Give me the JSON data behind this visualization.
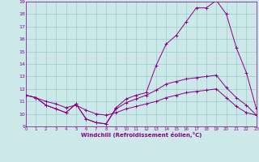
{
  "xlabel": "Windchill (Refroidissement éolien,°C)",
  "bg_color": "#cce8e8",
  "line_color": "#880088",
  "grid_color": "#99cccc",
  "xmin": 0,
  "xmax": 23,
  "ymin": 9,
  "ymax": 19,
  "series": [
    {
      "x": [
        0,
        1,
        2,
        3,
        4,
        5,
        6,
        7,
        8,
        9,
        10,
        11,
        12,
        13,
        14,
        15,
        16,
        17,
        18,
        19,
        20,
        21,
        22,
        23
      ],
      "y": [
        11.5,
        11.3,
        10.7,
        10.4,
        10.1,
        10.8,
        9.6,
        9.3,
        9.2,
        10.5,
        11.2,
        11.5,
        11.7,
        13.9,
        15.6,
        16.3,
        17.4,
        18.5,
        18.5,
        19.1,
        18.0,
        15.3,
        13.3,
        10.4
      ]
    },
    {
      "x": [
        0,
        1,
        2,
        3,
        4,
        5,
        6,
        7,
        8,
        9,
        10,
        11,
        12,
        13,
        14,
        15,
        16,
        17,
        18,
        19,
        20,
        21,
        22,
        23
      ],
      "y": [
        11.5,
        11.3,
        10.7,
        10.4,
        10.1,
        10.8,
        9.6,
        9.3,
        9.2,
        10.4,
        10.9,
        11.2,
        11.5,
        11.9,
        12.4,
        12.6,
        12.8,
        12.9,
        13.0,
        13.1,
        12.1,
        11.3,
        10.7,
        9.9
      ]
    },
    {
      "x": [
        0,
        1,
        2,
        3,
        4,
        5,
        6,
        7,
        8,
        9,
        10,
        11,
        12,
        13,
        14,
        15,
        16,
        17,
        18,
        19,
        20,
        21,
        22,
        23
      ],
      "y": [
        11.5,
        11.3,
        11.0,
        10.8,
        10.5,
        10.7,
        10.3,
        10.0,
        9.9,
        10.1,
        10.4,
        10.6,
        10.8,
        11.0,
        11.3,
        11.5,
        11.7,
        11.8,
        11.9,
        12.0,
        11.3,
        10.6,
        10.1,
        9.9
      ]
    }
  ]
}
